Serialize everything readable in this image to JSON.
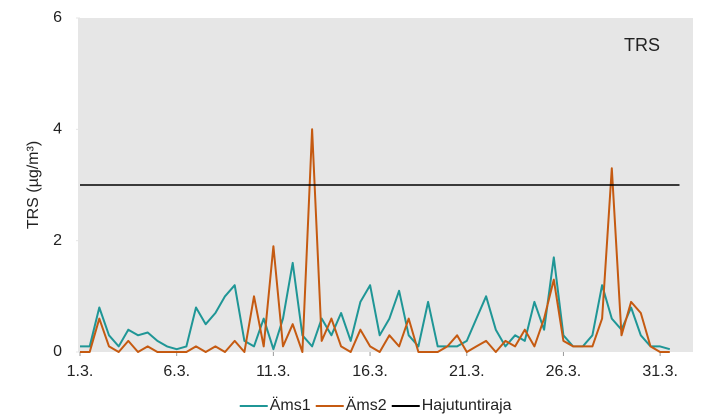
{
  "chart_data": {
    "type": "line",
    "annotation": "TRS",
    "y_label": "TRS (µg/m³)",
    "x": [
      1,
      1.5,
      2,
      2.5,
      3,
      3.5,
      4,
      4.5,
      5,
      5.5,
      6,
      6.5,
      7,
      7.5,
      8,
      8.5,
      9,
      9.5,
      10,
      10.5,
      11,
      11.5,
      12,
      12.5,
      13,
      13.5,
      14,
      14.5,
      15,
      15.5,
      16,
      16.5,
      17,
      17.5,
      18,
      18.5,
      19,
      19.5,
      20,
      20.5,
      21,
      21.5,
      22,
      22.5,
      23,
      23.5,
      24,
      24.5,
      25,
      25.5,
      26,
      26.5,
      27,
      27.5,
      28,
      28.5,
      29,
      29.5,
      30,
      30.5,
      31,
      31.5
    ],
    "series": [
      {
        "name": "Äms1",
        "color": "#1f9696",
        "values": [
          0.1,
          0.1,
          0.8,
          0.3,
          0.1,
          0.4,
          0.3,
          0.35,
          0.2,
          0.1,
          0.05,
          0.1,
          0.8,
          0.5,
          0.7,
          1.0,
          1.2,
          0.2,
          0.1,
          0.6,
          0.05,
          0.6,
          1.6,
          0.3,
          0.1,
          0.6,
          0.3,
          0.7,
          0.2,
          0.9,
          1.2,
          0.3,
          0.6,
          1.1,
          0.3,
          0.1,
          0.9,
          0.1,
          0.1,
          0.1,
          0.2,
          0.6,
          1.0,
          0.4,
          0.1,
          0.3,
          0.2,
          0.9,
          0.4,
          1.7,
          0.3,
          0.1,
          0.1,
          0.3,
          1.2,
          0.6,
          0.4,
          0.8,
          0.3,
          0.1,
          0.1,
          0.05
        ]
      },
      {
        "name": "Äms2",
        "color": "#c55a11",
        "values": [
          0,
          0,
          0.6,
          0.1,
          0,
          0.2,
          0,
          0.1,
          0,
          0,
          0,
          0,
          0.1,
          0,
          0.1,
          0,
          0.2,
          0,
          1.0,
          0.1,
          1.9,
          0.1,
          0.5,
          0,
          4.0,
          0.2,
          0.6,
          0.1,
          0,
          0.4,
          0.1,
          0,
          0.3,
          0.1,
          0.6,
          0,
          0,
          0,
          0.1,
          0.3,
          0,
          0.1,
          0.2,
          0,
          0.2,
          0.1,
          0.4,
          0.1,
          0.6,
          1.3,
          0.2,
          0.1,
          0.1,
          0.1,
          0.6,
          3.3,
          0.3,
          0.9,
          0.7,
          0.1,
          0,
          0
        ]
      },
      {
        "name": "Hajutuntiraja",
        "color": "#000000",
        "x": [
          1,
          32
        ],
        "values": [
          3,
          3
        ]
      }
    ],
    "xlim": [
      1,
      32.7
    ],
    "xticks": [
      {
        "value": 1,
        "label": "1.3."
      },
      {
        "value": 6,
        "label": "6.3."
      },
      {
        "value": 11,
        "label": "11.3."
      },
      {
        "value": 16,
        "label": "16.3."
      },
      {
        "value": 21,
        "label": "21.3."
      },
      {
        "value": 26,
        "label": "26.3."
      },
      {
        "value": 31,
        "label": "31.3."
      }
    ],
    "ylim": [
      0,
      6
    ],
    "yticks": [
      0,
      2,
      4,
      6
    ],
    "grid": false,
    "legend": "bottom"
  }
}
